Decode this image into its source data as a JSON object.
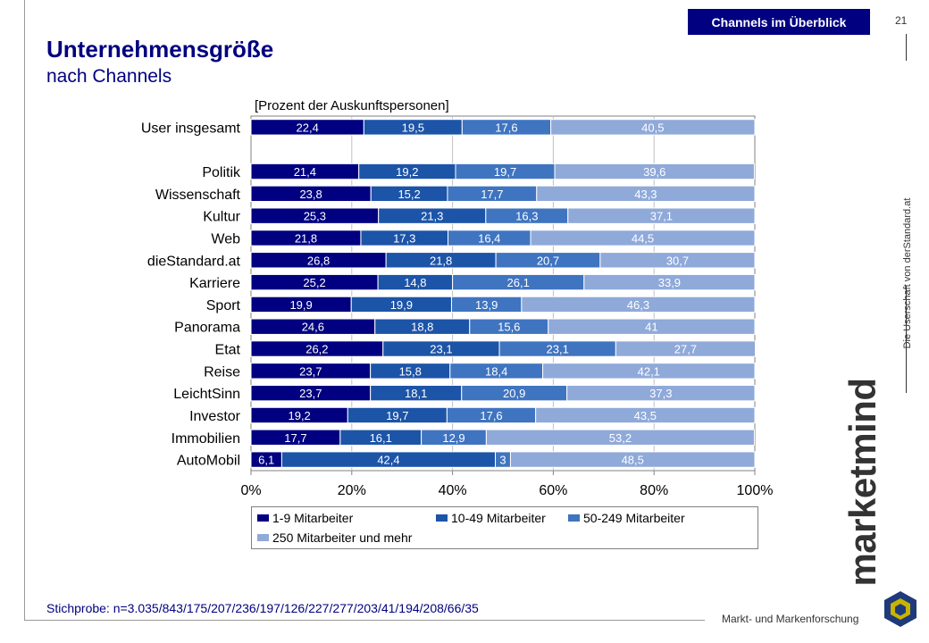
{
  "header": {
    "section_tag": "Channels im Überblick",
    "page_number": "21",
    "title": "Unternehmensgröße",
    "subtitle": "nach Channels"
  },
  "sidebar": {
    "vertical_caption": "Die Userschaft von derStandard.at",
    "brand": "marketmind",
    "tagline": "Markt- und Markenforschung"
  },
  "chart_data": {
    "type": "bar",
    "orientation": "horizontal",
    "stacked": true,
    "unit_label": "[Prozent der Auskunftspersonen]",
    "categories": [
      "User insgesamt",
      "Politik",
      "Wissenschaft",
      "Kultur",
      "Web",
      "dieStandard.at",
      "Karriere",
      "Sport",
      "Panorama",
      "Etat",
      "Reise",
      "LeichtSinn",
      "Investor",
      "Immobilien",
      "AutoMobil"
    ],
    "value_labels": [
      [
        "22,4",
        "19,5",
        "17,6",
        "40,5"
      ],
      [
        "21,4",
        "19,2",
        "19,7",
        "39,6"
      ],
      [
        "23,8",
        "15,2",
        "17,7",
        "43,3"
      ],
      [
        "25,3",
        "21,3",
        "16,3",
        "37,1"
      ],
      [
        "21,8",
        "17,3",
        "16,4",
        "44,5"
      ],
      [
        "26,8",
        "21,8",
        "20,7",
        "30,7"
      ],
      [
        "25,2",
        "14,8",
        "26,1",
        "33,9"
      ],
      [
        "19,9",
        "19,9",
        "13,9",
        "46,3"
      ],
      [
        "24,6",
        "18,8",
        "15,6",
        "41"
      ],
      [
        "26,2",
        "23,1",
        "23,1",
        "27,7"
      ],
      [
        "23,7",
        "15,8",
        "18,4",
        "42,1"
      ],
      [
        "23,7",
        "18,1",
        "20,9",
        "37,3"
      ],
      [
        "19,2",
        "19,7",
        "17,6",
        "43,5"
      ],
      [
        "17,7",
        "16,1",
        "12,9",
        "53,2"
      ],
      [
        "6,1",
        "42,4",
        "3",
        "48,5"
      ]
    ],
    "series": [
      {
        "name": "1-9 Mitarbeiter",
        "color": "#000080",
        "values": [
          22.4,
          21.4,
          23.8,
          25.3,
          21.8,
          26.8,
          25.2,
          19.9,
          24.6,
          26.2,
          23.7,
          23.7,
          19.2,
          17.7,
          6.1
        ]
      },
      {
        "name": "10-49 Mitarbeiter",
        "color": "#1c54a8",
        "values": [
          19.5,
          19.2,
          15.2,
          21.3,
          17.3,
          21.8,
          14.8,
          19.9,
          18.8,
          23.1,
          15.8,
          18.1,
          19.7,
          16.1,
          42.4
        ]
      },
      {
        "name": "50-249 Mitarbeiter",
        "color": "#3f74c0",
        "values": [
          17.6,
          19.7,
          17.7,
          16.3,
          16.4,
          20.7,
          26.1,
          13.9,
          15.6,
          23.1,
          18.4,
          20.9,
          17.6,
          12.9,
          3
        ]
      },
      {
        "name": "250 Mitarbeiter und mehr",
        "color": "#8fa9d9",
        "values": [
          40.5,
          39.6,
          43.3,
          37.1,
          44.5,
          30.7,
          33.9,
          46.3,
          41,
          27.7,
          42.1,
          37.3,
          43.5,
          53.2,
          48.5
        ]
      }
    ],
    "x_ticks": [
      "0%",
      "20%",
      "40%",
      "60%",
      "80%",
      "100%"
    ],
    "xlim": [
      0,
      100
    ],
    "grid": true,
    "legend_position": "bottom"
  },
  "footer": {
    "sample": "Stichprobe: n=3.035/843/175/207/236/197/126/227/277/203/41/194/208/66/35"
  }
}
